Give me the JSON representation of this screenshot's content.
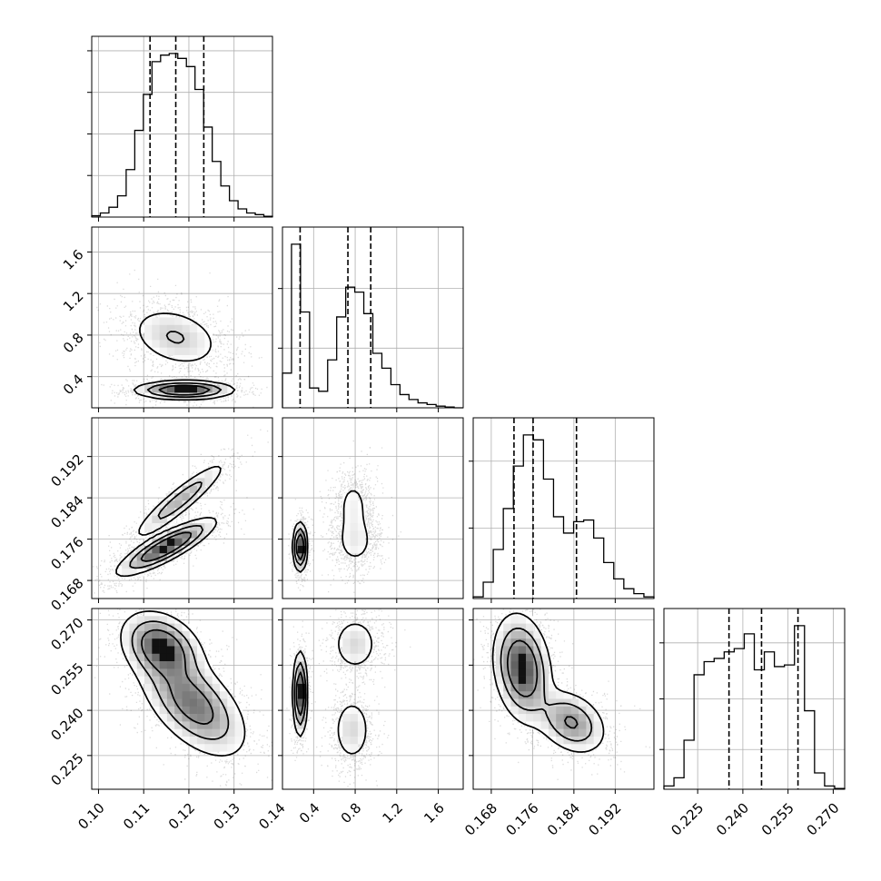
{
  "chart_data": {
    "type": "corner",
    "grid": true,
    "colors": {
      "axes": "#000000",
      "grid": "#b0b0b0",
      "points": "#000000",
      "density": "#000000",
      "median": "#000000"
    },
    "xticks": [
      [
        "0.10",
        "0.11",
        "0.12",
        "0.13",
        "0.14"
      ],
      [
        "0.4",
        "0.8",
        "1.2",
        "1.6"
      ],
      [
        "0.168",
        "0.176",
        "0.184",
        "0.192"
      ],
      [
        "0.225",
        "0.240",
        "0.255",
        "0.270"
      ]
    ],
    "yticks": [
      [],
      [
        "1.6",
        "1.2",
        "0.8",
        "0.4"
      ],
      [
        "0.192",
        "0.184",
        "0.176",
        "0.168"
      ],
      [
        "0.270",
        "0.255",
        "0.240",
        "0.225"
      ]
    ],
    "params": [
      {
        "range": [
          0.0985,
          0.1385
        ],
        "tick_values": [
          0.1,
          0.11,
          0.12,
          0.13,
          0.14
        ],
        "quantile_lines": [
          0.1114,
          0.1171,
          0.1233
        ],
        "hist": [
          0.8,
          2.5,
          6,
          13,
          29,
          53,
          75,
          95,
          99,
          100,
          97,
          92,
          78,
          55,
          34,
          19,
          10,
          5,
          2.5,
          1.5,
          0.5
        ]
      },
      {
        "range": [
          0.1,
          1.84
        ],
        "tick_values": [
          0.4,
          0.8,
          1.2,
          1.6
        ],
        "quantile_lines": [
          0.27,
          0.73,
          0.95
        ],
        "hist": [
          21,
          99,
          58,
          12,
          10,
          29,
          55,
          73,
          70,
          57,
          33,
          24,
          14,
          8,
          5,
          3,
          2,
          1,
          0.5,
          0
        ]
      },
      {
        "range": [
          0.1645,
          0.1995
        ],
        "tick_values": [
          0.168,
          0.176,
          0.184,
          0.192
        ],
        "quantile_lines": [
          0.1724,
          0.1761,
          0.1845
        ],
        "hist": [
          1,
          10,
          30,
          55,
          81,
          100,
          97,
          73,
          50,
          40,
          47,
          48,
          37,
          22,
          12,
          6,
          3,
          1
        ]
      },
      {
        "range": [
          0.2138,
          0.2738
        ],
        "tick_values": [
          0.225,
          0.24,
          0.255,
          0.27
        ],
        "quantile_lines": [
          0.2354,
          0.2462,
          0.2583
        ],
        "hist": [
          2,
          7,
          30,
          70,
          78,
          80,
          84,
          86,
          95,
          73,
          84,
          75,
          76,
          100,
          48,
          10,
          2,
          0.5
        ]
      }
    ],
    "pairs": [
      {
        "row": 1,
        "col": 0,
        "clusters": [
          {
            "mx": 0.117,
            "my": 0.78,
            "sx": 0.0055,
            "sy": 0.16,
            "rho": -0.3,
            "w": 0.55
          },
          {
            "mx": 0.119,
            "my": 0.27,
            "sx": 0.0055,
            "sy": 0.045,
            "rho": 0.0,
            "w": 0.45
          }
        ]
      },
      {
        "row": 1,
        "col": 1,
        "clusters": []
      },
      {
        "row": 2,
        "col": 0,
        "clusters": [
          {
            "mx": 0.118,
            "my": 0.1835,
            "sx": 0.0055,
            "sy": 0.004,
            "rho": 0.92,
            "w": 0.35
          },
          {
            "mx": 0.115,
            "my": 0.1745,
            "sx": 0.0055,
            "sy": 0.0028,
            "rho": 0.85,
            "w": 0.65
          }
        ]
      },
      {
        "row": 2,
        "col": 1,
        "clusters": [
          {
            "mx": 0.27,
            "my": 0.1745,
            "sx": 0.035,
            "sy": 0.0024,
            "rho": 0.0,
            "w": 0.4
          },
          {
            "mx": 0.78,
            "my": 0.1825,
            "sx": 0.1,
            "sy": 0.0035,
            "rho": 0.0,
            "w": 0.3
          },
          {
            "mx": 0.8,
            "my": 0.1755,
            "sx": 0.11,
            "sy": 0.0028,
            "rho": 0.0,
            "w": 0.3
          }
        ]
      },
      {
        "row": 3,
        "col": 0,
        "clusters": [
          {
            "mx": 0.114,
            "my": 0.261,
            "sx": 0.0045,
            "sy": 0.006,
            "rho": -0.3,
            "w": 0.4
          },
          {
            "mx": 0.121,
            "my": 0.242,
            "sx": 0.006,
            "sy": 0.009,
            "rho": -0.55,
            "w": 0.6
          }
        ]
      },
      {
        "row": 3,
        "col": 1,
        "clusters": [
          {
            "mx": 0.27,
            "my": 0.2455,
            "sx": 0.035,
            "sy": 0.007,
            "rho": 0.0,
            "w": 0.4
          },
          {
            "mx": 0.8,
            "my": 0.262,
            "sx": 0.12,
            "sy": 0.005,
            "rho": 0.0,
            "w": 0.3
          },
          {
            "mx": 0.77,
            "my": 0.2335,
            "sx": 0.1,
            "sy": 0.006,
            "rho": 0.0,
            "w": 0.3
          }
        ]
      },
      {
        "row": 3,
        "col": 2,
        "clusters": [
          {
            "mx": 0.174,
            "my": 0.254,
            "sx": 0.0028,
            "sy": 0.009,
            "rho": -0.2,
            "w": 0.68
          },
          {
            "mx": 0.1835,
            "my": 0.236,
            "sx": 0.0035,
            "sy": 0.0055,
            "rho": -0.3,
            "w": 0.32
          }
        ]
      }
    ]
  }
}
